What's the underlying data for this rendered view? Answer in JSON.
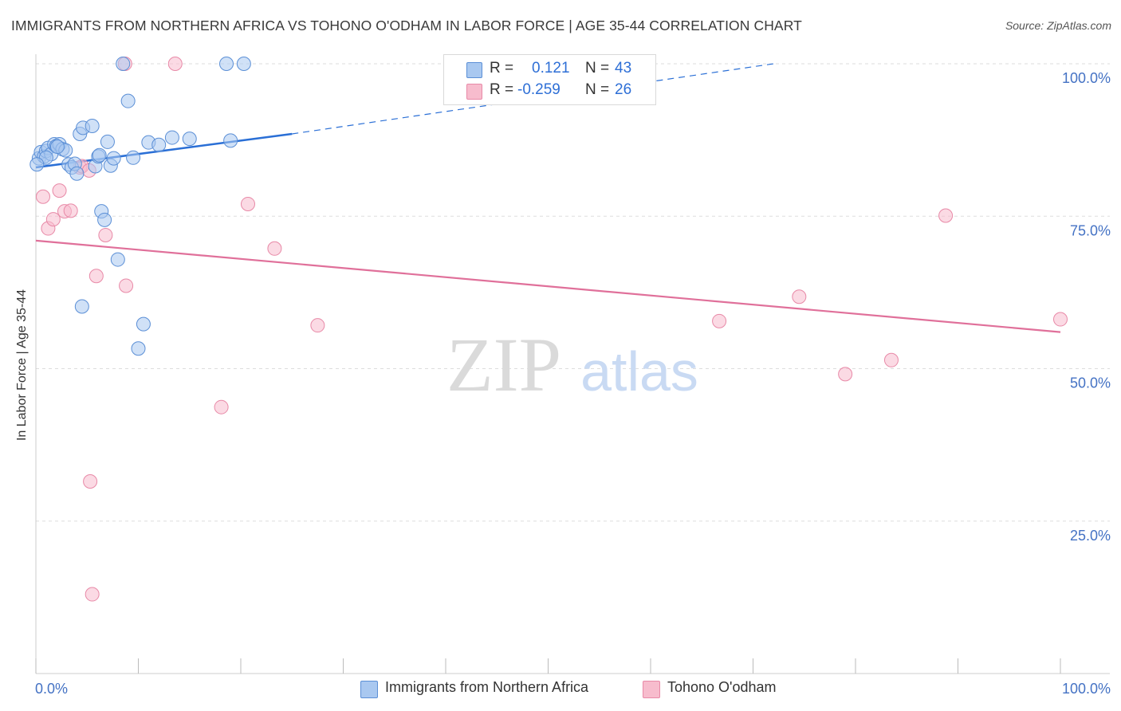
{
  "title": "IMMIGRANTS FROM NORTHERN AFRICA VS TOHONO O'ODHAM IN LABOR FORCE | AGE 35-44 CORRELATION CHART",
  "source": "Source: ZipAtlas.com",
  "watermark": {
    "zip": "ZIP",
    "atlas": "atlas"
  },
  "stats": {
    "row1": {
      "r_label": "R =",
      "r_value": "0.121",
      "n_label": "N =",
      "n_value": "43"
    },
    "row2": {
      "r_label": "R =",
      "r_value": "-0.259",
      "n_label": "N =",
      "n_value": "26"
    }
  },
  "legend": {
    "item1": "Immigrants from Northern Africa",
    "item2": "Tohono O'odham"
  },
  "colors": {
    "blue_fill": "#a9c8f0",
    "blue_stroke": "#5b8fd6",
    "blue_line": "#2a6fd6",
    "pink_fill": "#f7bccd",
    "pink_stroke": "#e889a7",
    "pink_line": "#e0709a",
    "axis_text": "#4472c4"
  },
  "chart_data": {
    "type": "scatter",
    "title": "IMMIGRANTS FROM NORTHERN AFRICA VS TOHONO O'ODHAM IN LABOR FORCE | AGE 35-44 CORRELATION CHART",
    "xlabel": "",
    "ylabel": "In Labor Force | Age 35-44",
    "xlim": [
      0,
      100
    ],
    "ylim": [
      0,
      100
    ],
    "x_tick_labels": [
      "0.0%",
      "100.0%"
    ],
    "y_tick_labels": [
      "25.0%",
      "50.0%",
      "75.0%",
      "100.0%"
    ],
    "y_ticks": [
      25,
      50,
      75,
      100
    ],
    "grid": true,
    "legend_position": "bottom",
    "series": [
      {
        "name": "Immigrants from Northern Africa",
        "points": [
          [
            0.3,
            84.5
          ],
          [
            0.5,
            85.5
          ],
          [
            0.8,
            84.8
          ],
          [
            1.0,
            85.7
          ],
          [
            1.2,
            86.2
          ],
          [
            1.5,
            85.2
          ],
          [
            1.8,
            86.8
          ],
          [
            2.0,
            86.5
          ],
          [
            2.3,
            86.8
          ],
          [
            2.6,
            86.0
          ],
          [
            2.9,
            85.8
          ],
          [
            3.2,
            83.5
          ],
          [
            3.5,
            83.0
          ],
          [
            3.8,
            83.6
          ],
          [
            4.0,
            82.0
          ],
          [
            4.3,
            88.5
          ],
          [
            4.6,
            89.5
          ],
          [
            5.5,
            89.8
          ],
          [
            5.8,
            83.2
          ],
          [
            6.1,
            84.8
          ],
          [
            6.4,
            75.8
          ],
          [
            6.7,
            74.4
          ],
          [
            7.0,
            87.2
          ],
          [
            7.3,
            83.3
          ],
          [
            7.6,
            84.5
          ],
          [
            8.0,
            67.9
          ],
          [
            8.5,
            100.0
          ],
          [
            9.0,
            93.9
          ],
          [
            9.5,
            84.6
          ],
          [
            10.0,
            53.3
          ],
          [
            10.5,
            57.3
          ],
          [
            11.0,
            87.1
          ],
          [
            12.0,
            86.7
          ],
          [
            13.3,
            87.9
          ],
          [
            15.0,
            87.7
          ],
          [
            18.6,
            100.0
          ],
          [
            19.0,
            87.4
          ],
          [
            20.3,
            100.0
          ],
          [
            1.0,
            84.6
          ],
          [
            2.1,
            86.4
          ],
          [
            4.5,
            60.2
          ],
          [
            6.2,
            85.0
          ],
          [
            0.1,
            83.5
          ]
        ],
        "trend": {
          "x0": 0.0,
          "y0": 83.0,
          "x1": 25.0,
          "y1": 88.5,
          "dash_to_x": 72.0,
          "dash_to_y": 100.0
        }
      },
      {
        "name": "Tohono O'odham",
        "points": [
          [
            0.7,
            78.2
          ],
          [
            1.2,
            73.0
          ],
          [
            1.7,
            74.5
          ],
          [
            2.3,
            79.2
          ],
          [
            2.8,
            75.8
          ],
          [
            3.4,
            75.9
          ],
          [
            4.3,
            83.0
          ],
          [
            4.5,
            83.2
          ],
          [
            5.2,
            82.5
          ],
          [
            5.3,
            31.5
          ],
          [
            5.5,
            13.0
          ],
          [
            5.9,
            65.2
          ],
          [
            6.8,
            71.9
          ],
          [
            8.7,
            100.0
          ],
          [
            8.8,
            63.6
          ],
          [
            13.6,
            100.0
          ],
          [
            18.1,
            43.7
          ],
          [
            20.7,
            77.0
          ],
          [
            23.3,
            69.7
          ],
          [
            27.5,
            57.1
          ],
          [
            66.7,
            57.8
          ],
          [
            74.5,
            61.8
          ],
          [
            79.0,
            49.1
          ],
          [
            83.5,
            51.4
          ],
          [
            88.8,
            75.1
          ],
          [
            100.0,
            58.1
          ]
        ],
        "trend": {
          "x0": 0.0,
          "y0": 71.0,
          "x1": 100.0,
          "y1": 56.0
        }
      }
    ]
  }
}
